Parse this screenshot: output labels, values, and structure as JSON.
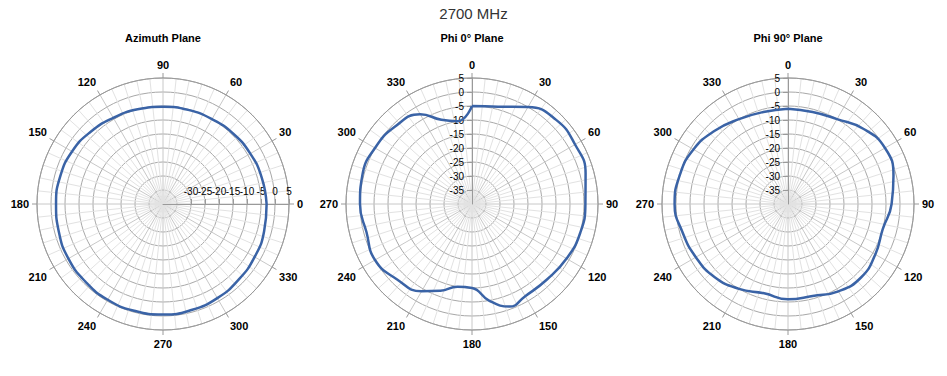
{
  "title": "2700 MHz",
  "chart_data": [
    {
      "type": "line",
      "title": "Azimuth Plane",
      "color": "#3a63a6",
      "grid": true,
      "x": [
        0,
        15,
        30,
        45,
        60,
        75,
        90,
        105,
        120,
        135,
        150,
        165,
        180,
        195,
        210,
        225,
        240,
        255,
        270,
        285,
        300,
        315,
        330,
        345,
        360
      ],
      "values": [
        -3,
        -3.5,
        -4,
        -4.5,
        -5,
        -5.2,
        -5.3,
        -5,
        -4.5,
        -3.5,
        -2.5,
        -2,
        -1.8,
        -1.5,
        -1,
        -0.8,
        -0.5,
        -0.5,
        -0.5,
        -0.8,
        -1.2,
        -1.8,
        -2.2,
        -2.6,
        -3
      ],
      "xlim": [
        0,
        360
      ],
      "xticks": [
        0,
        30,
        60,
        90,
        120,
        150,
        180,
        210,
        240,
        270,
        300,
        330
      ],
      "ylim": [
        -40,
        5
      ],
      "yticks": [
        -35,
        -30,
        -25,
        -20,
        -15,
        -10,
        -5,
        0,
        5
      ]
    },
    {
      "type": "line",
      "title": "Phi 0° Plane",
      "color": "#3a63a6",
      "grid": true,
      "x": [
        0,
        15,
        30,
        45,
        60,
        75,
        90,
        105,
        120,
        135,
        150,
        160,
        170,
        180,
        190,
        200,
        210,
        225,
        240,
        255,
        270,
        285,
        300,
        315,
        330,
        340,
        350,
        360
      ],
      "values": [
        -5,
        -4,
        0,
        2.5,
        2.5,
        2,
        0.5,
        0,
        -1,
        -2,
        -2,
        -1,
        -5,
        -10,
        -10,
        -7,
        -4,
        -2,
        0,
        -1,
        0,
        0.5,
        0,
        -1,
        -3,
        -8,
        -10,
        -5
      ],
      "xlim": [
        0,
        360
      ],
      "xticks": [
        0,
        30,
        60,
        90,
        120,
        150,
        180,
        210,
        240,
        270,
        300,
        330
      ],
      "ylim": [
        -40,
        5
      ],
      "yticks": [
        -35,
        -30,
        -25,
        -20,
        -15,
        -10,
        -5,
        0,
        5
      ]
    },
    {
      "type": "line",
      "title": "Phi 90° Plane",
      "color": "#3a63a6",
      "grid": true,
      "x": [
        0,
        15,
        30,
        45,
        60,
        75,
        90,
        105,
        120,
        135,
        150,
        165,
        180,
        195,
        210,
        225,
        240,
        255,
        270,
        285,
        300,
        315,
        330,
        345,
        360
      ],
      "values": [
        -6,
        -6,
        -5,
        -2,
        0,
        -1,
        -3,
        -5,
        -4,
        -3,
        -4,
        -6,
        -6,
        -7,
        -5,
        -3,
        -2,
        -1,
        0.5,
        0,
        -1,
        -3,
        -5,
        -6,
        -6
      ],
      "xlim": [
        0,
        360
      ],
      "xticks": [
        0,
        30,
        60,
        90,
        120,
        150,
        180,
        210,
        240,
        270,
        300,
        330
      ],
      "ylim": [
        -40,
        5
      ],
      "yticks": [
        -35,
        -30,
        -25,
        -20,
        -15,
        -10,
        -5,
        0,
        5
      ]
    }
  ]
}
